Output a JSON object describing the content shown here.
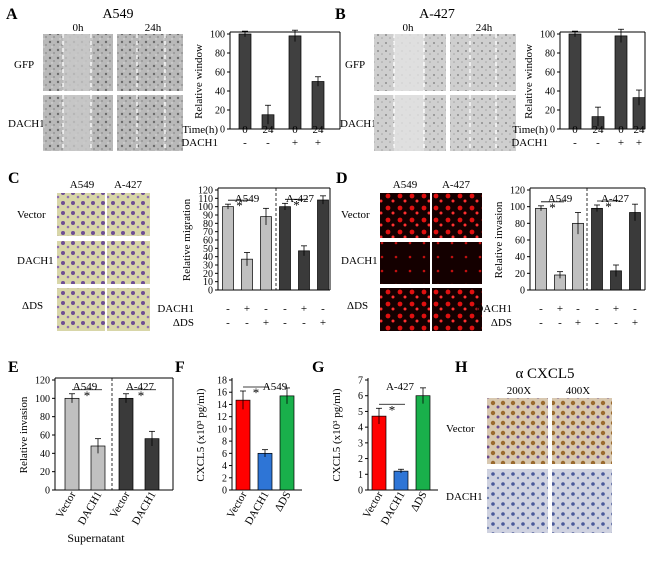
{
  "panels": {
    "A": {
      "letter": "A",
      "cell": "A549",
      "row_labels": [
        "GFP",
        "DACH1"
      ],
      "col_labels": [
        "0h",
        "24h"
      ]
    },
    "B": {
      "letter": "B",
      "cell": "A-427",
      "row_labels": [
        "GFP",
        "DACH1"
      ],
      "col_labels": [
        "0h",
        "24h"
      ]
    },
    "C": {
      "letter": "C",
      "col_labels": [
        "A549",
        "A-427"
      ],
      "row_labels": [
        "Vector",
        "DACH1",
        "ΔDS"
      ]
    },
    "D": {
      "letter": "D",
      "col_labels": [
        "A549",
        "A-427"
      ],
      "row_labels": [
        "Vector",
        "DACH1",
        "ΔDS"
      ]
    },
    "E": {
      "letter": "E",
      "xlabel": "Supernatant"
    },
    "F": {
      "letter": "F"
    },
    "G": {
      "letter": "G"
    },
    "H": {
      "letter": "H",
      "title": "α CXCL5",
      "col_labels": [
        "200X",
        "400X"
      ],
      "row_labels": [
        "Vector",
        "DACH1"
      ]
    }
  },
  "chart_data": [
    {
      "id": "A",
      "type": "bar",
      "ylabel": "Relative window",
      "ylim": [
        0,
        100
      ],
      "yticks": [
        0,
        20,
        40,
        60,
        80,
        100
      ],
      "categories": [
        "0",
        "24",
        "0",
        "24"
      ],
      "values": [
        100,
        15,
        98,
        50
      ],
      "errors": [
        3,
        10,
        6,
        5
      ],
      "colors": [
        "#404040",
        "#404040",
        "#404040",
        "#404040"
      ],
      "row_labels": [
        "Time(h)",
        "DACH1"
      ],
      "rows": [
        [
          "0",
          "24",
          "0",
          "24"
        ],
        [
          "-",
          "-",
          "+",
          "+"
        ]
      ]
    },
    {
      "id": "B",
      "type": "bar",
      "ylabel": "Relative window",
      "ylim": [
        0,
        100
      ],
      "yticks": [
        0,
        20,
        40,
        60,
        80,
        100
      ],
      "categories": [
        "0",
        "24",
        "0",
        "24"
      ],
      "values": [
        100,
        13,
        98,
        33
      ],
      "errors": [
        3,
        10,
        7,
        8
      ],
      "colors": [
        "#404040",
        "#404040",
        "#404040",
        "#404040"
      ],
      "row_labels": [
        "Time(h)",
        "DACH1"
      ],
      "rows": [
        [
          "0",
          "24",
          "0",
          "24"
        ],
        [
          "-",
          "-",
          "+",
          "+"
        ]
      ]
    },
    {
      "id": "C",
      "type": "bar",
      "ylabel": "Relative migration",
      "ylim": [
        0,
        120
      ],
      "yticks": [
        0,
        10,
        20,
        30,
        40,
        50,
        60,
        70,
        80,
        90,
        100,
        110,
        120
      ],
      "group_labels": [
        "A549",
        "A-427"
      ],
      "values": [
        100,
        37,
        88,
        100,
        47,
        108
      ],
      "errors": [
        3,
        8,
        10,
        4,
        6,
        5
      ],
      "colors": [
        "#c0c0c0",
        "#c0c0c0",
        "#c0c0c0",
        "#3a3a3a",
        "#3a3a3a",
        "#3a3a3a"
      ],
      "row_labels": [
        "DACH1",
        "ΔDS"
      ],
      "rows": [
        [
          "-",
          "+",
          "-",
          "-",
          "+",
          "-"
        ],
        [
          "-",
          "-",
          "+",
          "-",
          "-",
          "+"
        ]
      ],
      "star": "*"
    },
    {
      "id": "D",
      "type": "bar",
      "ylabel": "Relative invasion",
      "ylim": [
        0,
        120
      ],
      "yticks": [
        0,
        20,
        40,
        60,
        80,
        100,
        120
      ],
      "group_labels": [
        "A549",
        "A-427"
      ],
      "values": [
        98,
        18,
        80,
        98,
        23,
        93
      ],
      "errors": [
        3,
        4,
        13,
        4,
        7,
        10
      ],
      "colors": [
        "#c0c0c0",
        "#c0c0c0",
        "#c0c0c0",
        "#3a3a3a",
        "#3a3a3a",
        "#3a3a3a"
      ],
      "row_labels": [
        "DACH1",
        "ΔDS"
      ],
      "rows": [
        [
          "-",
          "+",
          "-",
          "-",
          "+",
          "-"
        ],
        [
          "-",
          "-",
          "+",
          "-",
          "-",
          "+"
        ]
      ],
      "star": "*"
    },
    {
      "id": "E",
      "type": "bar",
      "ylabel": "Relative invasion",
      "ylim": [
        0,
        120
      ],
      "yticks": [
        0,
        20,
        40,
        60,
        80,
        100,
        120
      ],
      "group_labels": [
        "A549",
        "A-427"
      ],
      "categories": [
        "Vector",
        "DACH1",
        "Vector",
        "DACH1"
      ],
      "values": [
        100,
        48,
        100,
        56
      ],
      "errors": [
        5,
        8,
        5,
        8
      ],
      "colors": [
        "#c0c0c0",
        "#c0c0c0",
        "#3a3a3a",
        "#3a3a3a"
      ],
      "star": "*"
    },
    {
      "id": "F",
      "type": "bar",
      "ylabel": "CXCL5 (x10³ pg/ml)",
      "ylim": [
        0,
        18
      ],
      "yticks": [
        0,
        2,
        4,
        6,
        8,
        10,
        12,
        14,
        16,
        18
      ],
      "title": "A549",
      "categories": [
        "Vector",
        "DACH1",
        "ΔDS"
      ],
      "values": [
        14.7,
        6.0,
        15.4
      ],
      "errors": [
        1.5,
        0.6,
        1.3
      ],
      "colors": [
        "#ff0000",
        "#2e75d6",
        "#19b04b"
      ],
      "star": "*"
    },
    {
      "id": "G",
      "type": "bar",
      "ylabel": "CXCL5 (x10³ pg/ml)",
      "ylim": [
        0,
        7
      ],
      "yticks": [
        0,
        1,
        2,
        3,
        4,
        5,
        6,
        7
      ],
      "title": "A-427",
      "categories": [
        "Vector",
        "DACH1",
        "ΔDS"
      ],
      "values": [
        4.7,
        1.2,
        6.0
      ],
      "errors": [
        0.5,
        0.12,
        0.5
      ],
      "colors": [
        "#ff0000",
        "#2e75d6",
        "#19b04b"
      ],
      "star": "*"
    }
  ]
}
